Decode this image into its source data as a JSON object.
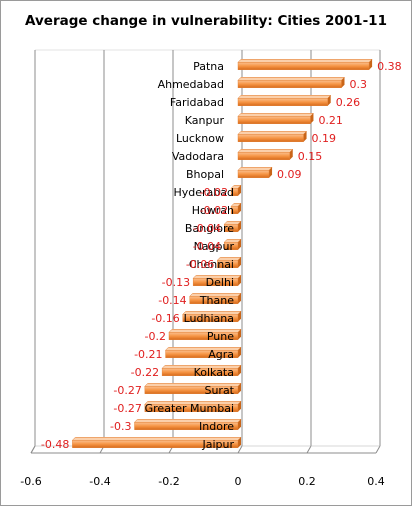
{
  "chart_data": {
    "type": "bar",
    "orientation": "horizontal",
    "title": "Average change in vulnerability: Cities 2001-11",
    "categories": [
      "Patna",
      "Ahmedabad",
      "Faridabad",
      "Kanpur",
      "Lucknow",
      "Vadodara",
      "Bhopal",
      "Hyderabad",
      "Howrah",
      "Banglore",
      "Nagpur",
      "Chennai",
      "Delhi",
      "Thane",
      "Ludhiana",
      "Pune",
      "Agra",
      "Kolkata",
      "Surat",
      "Greater Mumbai",
      "Indore",
      "Jaipur"
    ],
    "values": [
      0.38,
      0.3,
      0.26,
      0.21,
      0.19,
      0.15,
      0.09,
      -0.02,
      -0.02,
      -0.04,
      -0.04,
      -0.06,
      -0.13,
      -0.14,
      -0.16,
      -0.2,
      -0.21,
      -0.22,
      -0.27,
      -0.27,
      -0.3,
      -0.48
    ],
    "value_labels": [
      "0.38",
      "0.3",
      "0.26",
      "0.21",
      "0.19",
      "0.15",
      "0.09",
      "-0.02",
      "-0.02",
      "-0.04",
      "-0.04",
      "-0.06",
      "-0.13",
      "-0.14",
      "-0.16",
      "-0.2",
      "-0.21",
      "-0.22",
      "-0.27",
      "-0.27",
      "-0.3",
      "-0.48"
    ],
    "xlim": [
      -0.6,
      0.4
    ],
    "xticks": [
      "-0.6",
      "-0.4",
      "-0.2",
      "0",
      "0.2",
      "0.4"
    ],
    "grid": true,
    "legend": "none",
    "bar_color": "#F79646",
    "label_color": "#E02020"
  }
}
